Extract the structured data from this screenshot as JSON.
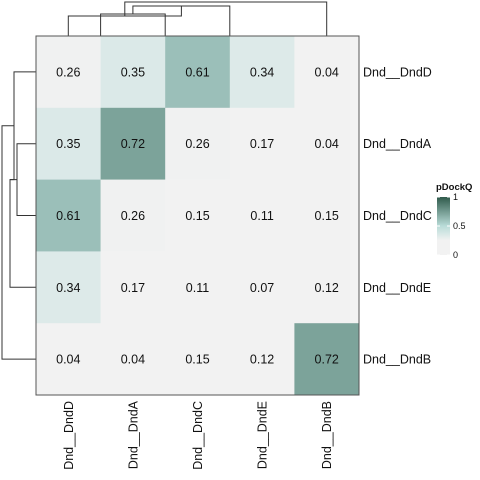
{
  "chart_data": {
    "type": "heatmap",
    "rows": [
      "Dnd__DndD",
      "Dnd__DndA",
      "Dnd__DndC",
      "Dnd__DndE",
      "Dnd__DndB"
    ],
    "columns": [
      "Dnd__DndD",
      "Dnd__DndA",
      "Dnd__DndC",
      "Dnd__DndE",
      "Dnd__DndB"
    ],
    "values": [
      [
        "0.26",
        "0.35",
        "0.61",
        "0.34",
        "0.04"
      ],
      [
        "0.35",
        "0.72",
        "0.26",
        "0.17",
        "0.04"
      ],
      [
        "0.61",
        "0.26",
        "0.15",
        "0.11",
        "0.15"
      ],
      [
        "0.34",
        "0.17",
        "0.11",
        "0.07",
        "0.12"
      ],
      [
        "0.04",
        "0.04",
        "0.15",
        "0.12",
        "0.72"
      ]
    ],
    "legend": {
      "title": "pDockQ",
      "ticks": [
        "0",
        "0.5",
        "1"
      ],
      "range": [
        0,
        1
      ],
      "placement": "right"
    },
    "color_scale": {
      "low": "#f2f2f2",
      "mid": "#b9dcd8",
      "high": "#2f5a4b",
      "threshold": 0.25
    },
    "dendrograms": {
      "rows": true,
      "columns": true
    }
  }
}
